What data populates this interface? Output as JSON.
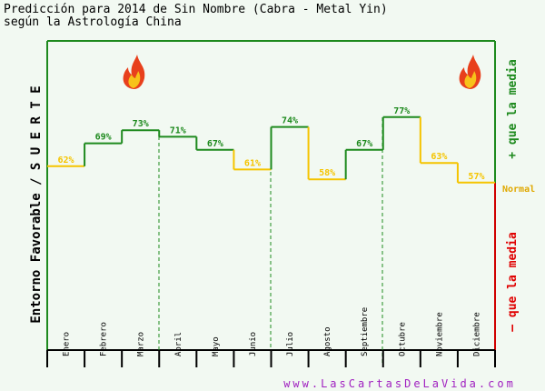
{
  "chart_data": {
    "type": "step",
    "title": "Predicción para 2014 de Sin Nombre (Cabra - Metal Yin)",
    "subtitle": "según la Astrología China",
    "y_label": "Entorno Favorable / S U E R T E",
    "annotations": {
      "above": "+ que la media",
      "normal": "Normal",
      "below": "– que la media"
    },
    "footer": "www.LasCartasDeLaVida.com",
    "categories": [
      "Enero",
      "Febrero",
      "Marzo",
      "Abril",
      "Mayo",
      "Junio",
      "Julio",
      "Agosto",
      "Septiembre",
      "Octubre",
      "Noviembre",
      "Diciembre"
    ],
    "values": [
      62,
      69,
      73,
      71,
      67,
      61,
      74,
      58,
      67,
      77,
      63,
      57
    ],
    "value_labels": [
      "62%",
      "69%",
      "73%",
      "71%",
      "67%",
      "61%",
      "74%",
      "58%",
      "67%",
      "77%",
      "63%",
      "57%"
    ],
    "colors": [
      "#f5c400",
      "#1e8a1e",
      "#1e8a1e",
      "#1e8a1e",
      "#1e8a1e",
      "#f5c400",
      "#1e8a1e",
      "#f5c400",
      "#1e8a1e",
      "#1e8a1e",
      "#f5c400",
      "#f5c400"
    ],
    "ylim": [
      0,
      100
    ]
  }
}
